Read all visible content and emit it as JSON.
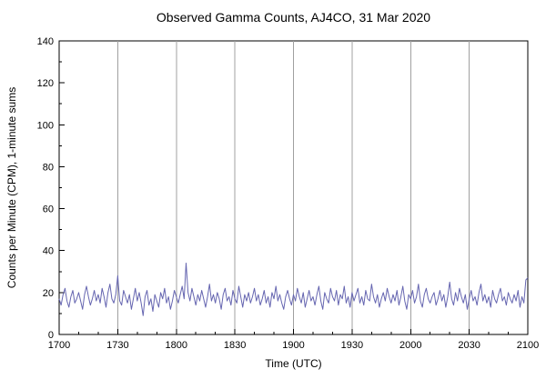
{
  "title": "Observed Gamma Counts, AJ4CO, 31 Mar 2020",
  "chart_data": {
    "type": "line",
    "title": "Observed Gamma Counts, AJ4CO, 31 Mar 2020",
    "xlabel": "Time (UTC)",
    "ylabel": "Counts per Minute (CPM), 1-minute sums",
    "x_tick_labels": [
      "1700",
      "1730",
      "1800",
      "1830",
      "1900",
      "1930",
      "2000",
      "2030",
      "2100"
    ],
    "x_tick_positions": [
      0,
      30,
      60,
      90,
      120,
      150,
      180,
      210,
      240
    ],
    "x_minor_step": 10,
    "x_range": [
      0,
      240
    ],
    "ylim": [
      0,
      140
    ],
    "y_ticks": [
      0,
      20,
      40,
      60,
      80,
      100,
      120,
      140
    ],
    "y_minor_step": 10,
    "grid": "vertical",
    "legend": "none",
    "line_color": "#6565b0",
    "grid_color": "#a0a0a0",
    "axis_color": "#000000",
    "values": [
      17,
      14,
      19,
      22,
      16,
      13,
      18,
      21,
      15,
      17,
      20,
      16,
      12,
      19,
      23,
      18,
      14,
      17,
      21,
      16,
      19,
      15,
      22,
      18,
      13,
      20,
      24,
      17,
      15,
      19,
      28,
      16,
      14,
      21,
      18,
      15,
      19,
      12,
      17,
      22,
      16,
      20,
      15,
      9,
      18,
      21,
      14,
      17,
      11,
      19,
      16,
      13,
      20,
      17,
      22,
      15,
      18,
      12,
      16,
      21,
      18,
      15,
      19,
      23,
      17,
      34,
      20,
      16,
      22,
      18,
      14,
      19,
      16,
      21,
      17,
      13,
      18,
      24,
      16,
      19,
      15,
      20,
      17,
      12,
      19,
      22,
      16,
      18,
      14,
      21,
      17,
      15,
      23,
      18,
      13,
      19,
      16,
      20,
      15,
      18,
      22,
      16,
      19,
      14,
      17,
      21,
      15,
      18,
      13,
      20,
      17,
      23,
      16,
      19,
      15,
      12,
      18,
      21,
      17,
      14,
      19,
      16,
      22,
      18,
      15,
      20,
      13,
      17,
      21,
      16,
      18,
      14,
      19,
      23,
      16,
      12,
      20,
      17,
      15,
      22,
      18,
      16,
      21,
      14,
      19,
      17,
      23,
      15,
      18,
      13,
      20,
      16,
      19,
      22,
      15,
      18,
      14,
      21,
      17,
      16,
      24,
      18,
      15,
      19,
      13,
      17,
      20,
      16,
      22,
      18,
      15,
      19,
      16,
      21,
      14,
      18,
      23,
      16,
      12,
      19,
      17,
      21,
      15,
      18,
      24,
      16,
      13,
      19,
      22,
      17,
      15,
      18,
      20,
      14,
      17,
      21,
      16,
      19,
      13,
      18,
      25,
      17,
      14,
      20,
      16,
      22,
      18,
      15,
      19,
      12,
      17,
      21,
      16,
      18,
      14,
      20,
      24,
      16,
      19,
      15,
      18,
      13,
      21,
      17,
      15,
      19,
      22,
      16,
      18,
      14,
      20,
      17,
      15,
      19,
      16,
      21,
      13,
      18,
      15,
      26,
      27
    ]
  }
}
